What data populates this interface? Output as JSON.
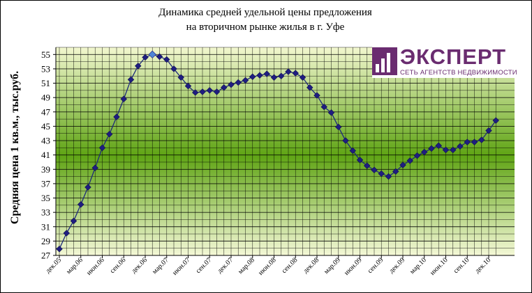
{
  "chart_data": {
    "type": "line",
    "title_lines": [
      "Динамика средней удельной цены предложения",
      "на вторичном рынке жилья в г. Уфе"
    ],
    "xlabel": "",
    "ylabel": "Средняя цена 1 кв.м., тыс.руб.",
    "ylim": [
      27,
      56
    ],
    "yticks": [
      27,
      29,
      31,
      33,
      35,
      37,
      39,
      41,
      43,
      45,
      47,
      49,
      51,
      53,
      55
    ],
    "x_tick_labels": [
      "дек.05",
      "мар.06",
      "июн.06",
      "сен.06",
      "дек.06",
      "мар.07",
      "июн.07",
      "сен.07",
      "дек.07",
      "мар.08",
      "июн.08",
      "сен.08",
      "дек.08",
      "мар.09",
      "июн.09",
      "сен.09",
      "дек.09",
      "мар.10",
      "июн.10",
      "сен.10",
      "дек.10"
    ],
    "grid": true,
    "series": [
      {
        "values": [
          27.9,
          30.1,
          31.8,
          34.1,
          36.5,
          39.2,
          42.0,
          43.9,
          46.3,
          48.8,
          51.5,
          53.4,
          54.6,
          55.0,
          54.7,
          54.3,
          53.0,
          51.8,
          50.6,
          49.7,
          49.8,
          50.0,
          49.8,
          50.4,
          50.8,
          51.1,
          51.4,
          51.9,
          52.1,
          52.3,
          51.8,
          52.0,
          52.6,
          52.4,
          51.8,
          50.4,
          49.3,
          47.7,
          46.9,
          44.9,
          43.0,
          41.6,
          40.3,
          39.5,
          38.9,
          38.4,
          38.0,
          38.7,
          39.6,
          40.2,
          40.9,
          41.4,
          41.9,
          42.3,
          41.7,
          41.7,
          42.2,
          42.8,
          42.8,
          43.1,
          44.4,
          45.8
        ],
        "highlight_index": 13
      }
    ],
    "colors": {
      "line": "#1e2a7a",
      "marker": "#1f1d80",
      "highlight_marker": "#4f86d6",
      "plot_top": "#f2f7cf",
      "plot_mid": "#5fa414",
      "plot_bottom": "#f4f8d6",
      "grid": "#000000"
    }
  },
  "logo": {
    "word": "ЭКСПЕРТ",
    "subtitle": "СЕТЬ АГЕНТСТВ НЕДВИЖИМОСТИ"
  }
}
